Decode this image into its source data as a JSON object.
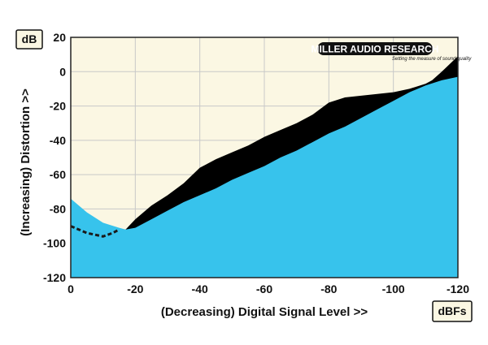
{
  "chart_data": {
    "type": "area",
    "xlabel": "(Decreasing) Digital Signal Level >>",
    "ylabel": "(Increasing) Distortion >>",
    "y_unit": "dB",
    "x_unit": "dBFs",
    "xlim": [
      0,
      -120
    ],
    "ylim": [
      -120,
      20
    ],
    "x_ticks": [
      0,
      -20,
      -40,
      -60,
      -80,
      -100,
      -120
    ],
    "y_ticks": [
      20,
      0,
      -20,
      -40,
      -60,
      -80,
      -100,
      -120
    ],
    "grid": true,
    "brand": {
      "name": "MILLER AUDIO RESEARCH",
      "tagline": "Setting the measure of sound quality"
    },
    "colors": {
      "plot_background": "#fbf7e3",
      "noise_area": "#37c3ec",
      "distortion_area": "#000000",
      "grid": "#c8c8c8"
    },
    "series": [
      {
        "role": "noise-floor",
        "x": [
          0,
          -5,
          -10,
          -15,
          -17,
          -20,
          -25,
          -30,
          -35,
          -40,
          -45,
          -50,
          -55,
          -60,
          -65,
          -70,
          -75,
          -80,
          -85,
          -90,
          -95,
          -100,
          -105,
          -110,
          -115,
          -120
        ],
        "values": [
          -74,
          -82,
          -88,
          -91,
          -92,
          -91,
          -86,
          -81,
          -76,
          -72,
          -68,
          -63,
          -59,
          -55,
          -50,
          -46,
          -41,
          -36,
          -32,
          -27,
          -22,
          -17,
          -12,
          -8,
          -5,
          -3
        ]
      },
      {
        "role": "distortion",
        "x": [
          -15,
          -17,
          -20,
          -25,
          -30,
          -35,
          -40,
          -45,
          -50,
          -55,
          -60,
          -65,
          -70,
          -75,
          -80,
          -85,
          -90,
          -95,
          -100,
          -105,
          -110,
          -112,
          -115,
          -120
        ],
        "values": [
          -92,
          -92,
          -86,
          -78,
          -72,
          -65,
          -56,
          -51,
          -47,
          -43,
          -38,
          -34,
          -30,
          -25,
          -18,
          -15,
          -14,
          -13,
          -12,
          -10,
          -7,
          -5,
          0,
          9
        ]
      },
      {
        "role": "distortion-below-noise",
        "style": "dashed",
        "x": [
          0,
          -5,
          -10,
          -13,
          -15
        ],
        "values": [
          -90,
          -94,
          -96,
          -94,
          -92
        ]
      }
    ]
  }
}
